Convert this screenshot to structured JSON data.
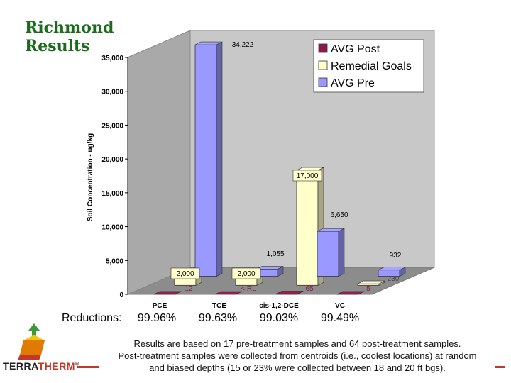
{
  "slide": {
    "title_line1": "Richmond",
    "title_line2": "Results"
  },
  "reductions": {
    "label": "Reductions:",
    "values": [
      "99.96%",
      "99.63%",
      "99.03%",
      "99.49%"
    ]
  },
  "footnote": {
    "lines": [
      "Results are based on 17 pre-treatment samples and 64 post-treatment samples.",
      "Post-treatment samples were collected from centroids (i.e., coolest locations) at random",
      "and biased depths (15 or 23% were collected between 18 and 20 ft bgs)."
    ]
  },
  "logo": {
    "text_a": "TERRA",
    "text_b": "THERM",
    "reg": "®"
  },
  "colors": {
    "title": "#1a6b1a",
    "post": "#8b1a4a",
    "goals": "#ffffcc",
    "pre": "#9999ff",
    "wall": "#c0c0c0",
    "accent": "#c0392b"
  },
  "chart_data": {
    "type": "bar",
    "ylabel": "Soil Concentration - ug/kg",
    "ylim": [
      0,
      35000
    ],
    "yticks": [
      "0",
      "5,000",
      "10,000",
      "15,000",
      "20,000",
      "25,000",
      "30,000",
      "35,000"
    ],
    "categories": [
      "PCE",
      "TCE",
      "cis-1,2-DCE",
      "VC"
    ],
    "series": [
      {
        "name": "AVG Post",
        "values": [
          12,
          null,
          65,
          5
        ],
        "labels": [
          "12",
          "< RL",
          "65",
          "5"
        ]
      },
      {
        "name": "Remedial Goals",
        "values": [
          2000,
          2000,
          17000,
          230
        ],
        "labels": [
          "2,000",
          "2,000",
          "17,000",
          "230"
        ]
      },
      {
        "name": "AVG Pre",
        "values": [
          34222,
          1055,
          6650,
          932
        ],
        "labels": [
          "34,222",
          "1,055",
          "6,650",
          "932"
        ]
      }
    ],
    "legend_position": "top-right",
    "grid": false
  }
}
